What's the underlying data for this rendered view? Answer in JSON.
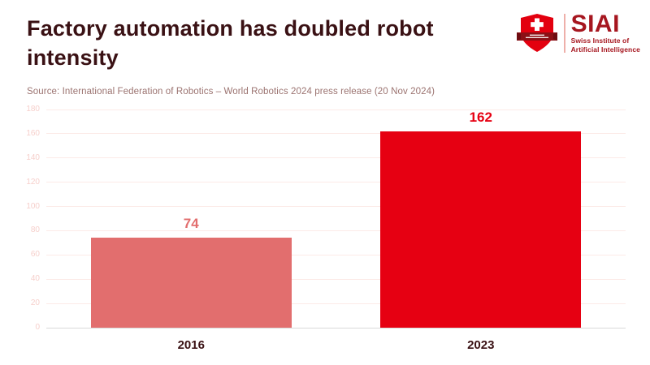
{
  "page": {
    "title": "Factory automation has doubled robot intensity",
    "source": "Source: International Federation of Robotics – World Robotics 2024 press release (20 Nov 2024)"
  },
  "logo": {
    "acronym": "SIAI",
    "subtitle_line1": "Swiss Institute of",
    "subtitle_line2": "Artificial Intelligence"
  },
  "chart_data": {
    "type": "bar",
    "title": "Factory automation has doubled robot intensity",
    "categories": [
      "2016",
      "2023"
    ],
    "values": [
      74,
      162
    ],
    "bar_colors": [
      "#e26e6e",
      "#e60012"
    ],
    "value_label_colors": [
      "#e26e6e",
      "#e60012"
    ],
    "ylim": [
      0,
      180
    ],
    "ytick_step": 20,
    "grid": true,
    "legend": "none",
    "xlabel": "",
    "ylabel": ""
  },
  "colors": {
    "title": "#3a1114",
    "source": "#9b7370",
    "grid": "#fceae7",
    "ytick": "#f6cfcb",
    "zero_line": "#d9d9d9",
    "xtick": "#3a1114",
    "logo_red": "#e3000f",
    "logo_banner": "#8c1016",
    "logo_dark_red": "#a6161f"
  }
}
